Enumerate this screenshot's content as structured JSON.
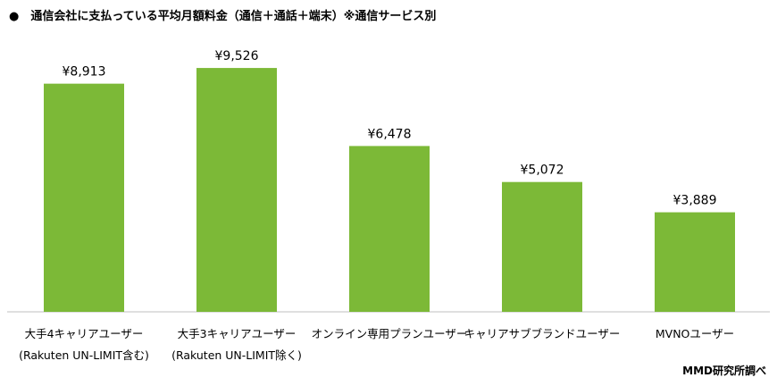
{
  "title": "●　通信会社に支払っている平均月額料金（通信＋通話＋端末）※通信サービス別",
  "source": "MMD研究所調べ",
  "chart_data": {
    "type": "bar",
    "title": "通信会社に支払っている平均月額料金（通信＋通話＋端末）※通信サービス別",
    "categories": [
      [
        "大手4キャリアユーザー",
        "(Rakuten UN-LIMIT含む)"
      ],
      [
        "大手3キャリアユーザー",
        "(Rakuten UN-LIMIT除く)"
      ],
      [
        "オンライン専用プランユーザー"
      ],
      [
        "キャリアサブブランドユーザー"
      ],
      [
        "MVNOユーザー"
      ]
    ],
    "values": [
      8913,
      9526,
      6478,
      5072,
      3889
    ],
    "value_labels": [
      "¥8,913",
      "¥9,526",
      "¥6,478",
      "¥5,072",
      "¥3,889"
    ],
    "ylim": [
      0,
      10000
    ],
    "grid": false,
    "colors": {
      "bar": "#7cb937",
      "axis": "#bfbfbf"
    }
  }
}
